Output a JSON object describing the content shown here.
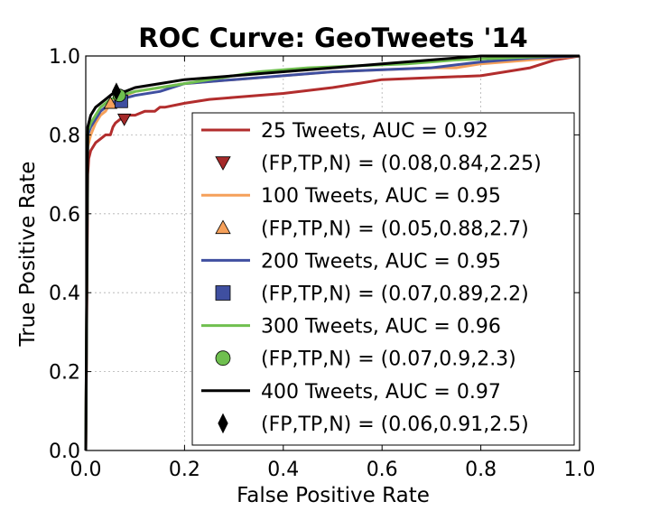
{
  "chart_data": {
    "type": "line",
    "title": "ROC Curve: GeoTweets '14",
    "xlabel": "False Positive Rate",
    "ylabel": "True Positive Rate",
    "xlim": [
      0.0,
      1.0
    ],
    "ylim": [
      0.0,
      1.0
    ],
    "xticks": [
      "0.0",
      "0.2",
      "0.4",
      "0.6",
      "0.8",
      "1.0"
    ],
    "yticks": [
      "0.0",
      "0.2",
      "0.4",
      "0.6",
      "0.8",
      "1.0"
    ],
    "grid": true,
    "legend_position": "lower-right",
    "series": [
      {
        "name": "25 Tweets,  AUC = 0.92",
        "color": "#b22d2d",
        "x": [
          0,
          0.004,
          0.006,
          0.01,
          0.02,
          0.03,
          0.04,
          0.05,
          0.055,
          0.06,
          0.07,
          0.08,
          0.1,
          0.12,
          0.14,
          0.15,
          0.16,
          0.2,
          0.25,
          0.3,
          0.4,
          0.5,
          0.55,
          0.6,
          0.7,
          0.8,
          0.85,
          0.9,
          0.95,
          1.0
        ],
        "y": [
          0,
          0.7,
          0.74,
          0.76,
          0.78,
          0.79,
          0.8,
          0.8,
          0.82,
          0.83,
          0.84,
          0.85,
          0.85,
          0.86,
          0.86,
          0.87,
          0.87,
          0.88,
          0.89,
          0.895,
          0.905,
          0.92,
          0.93,
          0.94,
          0.945,
          0.95,
          0.96,
          0.97,
          0.99,
          1.0
        ]
      },
      {
        "name": "100 Tweets,  AUC = 0.95",
        "color": "#f5a05a",
        "x": [
          0,
          0.004,
          0.01,
          0.02,
          0.03,
          0.04,
          0.05,
          0.06,
          0.08,
          0.1,
          0.15,
          0.2,
          0.3,
          0.4,
          0.5,
          0.6,
          0.7,
          0.75,
          0.8,
          0.9,
          1.0
        ],
        "y": [
          0,
          0.77,
          0.8,
          0.83,
          0.85,
          0.86,
          0.88,
          0.89,
          0.9,
          0.91,
          0.92,
          0.93,
          0.94,
          0.95,
          0.96,
          0.965,
          0.97,
          0.97,
          0.98,
          0.99,
          1.0
        ]
      },
      {
        "name": "200 Tweets,  AUC = 0.95",
        "color": "#3f4fa0",
        "x": [
          0,
          0.004,
          0.01,
          0.02,
          0.03,
          0.05,
          0.07,
          0.1,
          0.15,
          0.2,
          0.3,
          0.4,
          0.5,
          0.6,
          0.7,
          0.8,
          0.9,
          1.0
        ],
        "y": [
          0,
          0.8,
          0.82,
          0.84,
          0.86,
          0.88,
          0.89,
          0.9,
          0.91,
          0.93,
          0.94,
          0.95,
          0.96,
          0.965,
          0.97,
          0.985,
          0.995,
          1.0
        ]
      },
      {
        "name": "300 Tweets,  AUC = 0.96",
        "color": "#6fbf4f",
        "x": [
          0,
          0.004,
          0.01,
          0.02,
          0.03,
          0.05,
          0.07,
          0.1,
          0.15,
          0.2,
          0.3,
          0.35,
          0.45,
          0.55,
          0.65,
          0.75,
          0.85,
          0.95,
          1.0
        ],
        "y": [
          0,
          0.81,
          0.83,
          0.85,
          0.87,
          0.89,
          0.9,
          0.91,
          0.92,
          0.93,
          0.95,
          0.96,
          0.97,
          0.975,
          0.98,
          0.99,
          0.995,
          1.0,
          1.0
        ]
      },
      {
        "name": "400 Tweets,  AUC = 0.97",
        "color": "#000000",
        "x": [
          0,
          0.004,
          0.01,
          0.02,
          0.03,
          0.04,
          0.05,
          0.06,
          0.08,
          0.1,
          0.15,
          0.2,
          0.3,
          0.4,
          0.5,
          0.6,
          0.7,
          0.8,
          0.9,
          1.0
        ],
        "y": [
          0,
          0.82,
          0.85,
          0.87,
          0.88,
          0.89,
          0.9,
          0.91,
          0.91,
          0.92,
          0.93,
          0.94,
          0.95,
          0.96,
          0.97,
          0.98,
          0.99,
          1.0,
          1.0,
          1.0
        ]
      }
    ],
    "points": [
      {
        "name": "(FP,TP,N) = (0.08,0.84,2.25)",
        "marker": "triangle-down",
        "color": "#a52a2a",
        "x": 0.078,
        "y": 0.84
      },
      {
        "name": "(FP,TP,N) = (0.05,0.88,2.7)",
        "marker": "triangle-up",
        "color": "#f5a05a",
        "x": 0.05,
        "y": 0.88
      },
      {
        "name": "(FP,TP,N) = (0.07,0.89,2.2)",
        "marker": "square",
        "color": "#3f4fa0",
        "x": 0.072,
        "y": 0.885
      },
      {
        "name": "(FP,TP,N) = (0.07,0.9,2.3)",
        "marker": "circle",
        "color": "#6fbf4f",
        "x": 0.068,
        "y": 0.9
      },
      {
        "name": "(FP,TP,N) = (0.06,0.91,2.5)",
        "marker": "diamond",
        "color": "#000000",
        "x": 0.062,
        "y": 0.91
      }
    ],
    "legend_order": [
      {
        "kind": "series",
        "index": 0
      },
      {
        "kind": "point",
        "index": 0
      },
      {
        "kind": "series",
        "index": 1
      },
      {
        "kind": "point",
        "index": 1
      },
      {
        "kind": "series",
        "index": 2
      },
      {
        "kind": "point",
        "index": 2
      },
      {
        "kind": "series",
        "index": 3
      },
      {
        "kind": "point",
        "index": 3
      },
      {
        "kind": "series",
        "index": 4
      },
      {
        "kind": "point",
        "index": 4
      }
    ]
  }
}
